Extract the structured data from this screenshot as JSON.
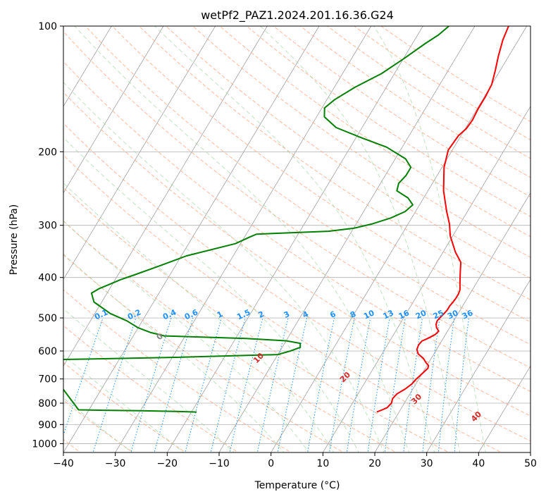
{
  "chart_data": {
    "type": "line",
    "subtype": "skew-t log-p diagram",
    "title": "wetPf2_PAZ1.2024.201.16.36.G24",
    "xlabel": "Temperature (°C)",
    "ylabel": "Pressure (hPa)",
    "xlim": [
      -40,
      50
    ],
    "ylim_hPa": [
      1050,
      100
    ],
    "y_scale": "log",
    "grid": true,
    "x_ticks": [
      "−40",
      "−30",
      "−20",
      "−10",
      "0",
      "10",
      "20",
      "30",
      "40",
      "50"
    ],
    "x_tick_values": [
      -40,
      -30,
      -20,
      -10,
      0,
      10,
      20,
      30,
      40,
      50
    ],
    "y_ticks": [
      "100",
      "200",
      "300",
      "400",
      "500",
      "600",
      "700",
      "800",
      "900",
      "1000"
    ],
    "y_tick_values": [
      100,
      200,
      300,
      400,
      500,
      600,
      700,
      800,
      900,
      1000
    ],
    "series": [
      {
        "role": "temperature",
        "color": "#ff0000",
        "points": [
          [
            15.7,
            840
          ],
          [
            16.5,
            830
          ],
          [
            17.2,
            820
          ],
          [
            17.5,
            800
          ],
          [
            17.2,
            780
          ],
          [
            17.5,
            760
          ],
          [
            18.5,
            740
          ],
          [
            19.2,
            720
          ],
          [
            19.5,
            700
          ],
          [
            20.0,
            680
          ],
          [
            20.5,
            660
          ],
          [
            20.3,
            650
          ],
          [
            19.5,
            640
          ],
          [
            18.5,
            625
          ],
          [
            17.0,
            610
          ],
          [
            16.2,
            595
          ],
          [
            16.0,
            580
          ],
          [
            16.2,
            568
          ],
          [
            17.0,
            560
          ],
          [
            18.0,
            548
          ],
          [
            18.3,
            538
          ],
          [
            17.5,
            528
          ],
          [
            17.0,
            518
          ],
          [
            16.8,
            508
          ],
          [
            17.0,
            498
          ],
          [
            17.3,
            488
          ],
          [
            17.5,
            478
          ],
          [
            17.5,
            468
          ],
          [
            17.7,
            458
          ],
          [
            17.8,
            448
          ],
          [
            17.8,
            438
          ],
          [
            17.6,
            428
          ],
          [
            16.6,
            408
          ],
          [
            15.6,
            388
          ],
          [
            14.6,
            368
          ],
          [
            12.4,
            348
          ],
          [
            9.5,
            318
          ],
          [
            8.0,
            298
          ],
          [
            6.0,
            278
          ],
          [
            3.0,
            248
          ],
          [
            0.4,
            218
          ],
          [
            -0.8,
            198
          ],
          [
            -0.5,
            183
          ],
          [
            0.2,
            176
          ],
          [
            0.4,
            168
          ],
          [
            0.2,
            158
          ],
          [
            0.2,
            148
          ],
          [
            0.0,
            138
          ],
          [
            -0.9,
            128
          ],
          [
            -2.0,
            118
          ],
          [
            -3.0,
            108
          ],
          [
            -3.5,
            100
          ]
        ]
      },
      {
        "role": "dewpoint",
        "color": "#008000",
        "points": [
          [
            -19.0,
            840
          ],
          [
            -23.0,
            837
          ],
          [
            -30.0,
            834
          ],
          [
            -37.0,
            832
          ],
          [
            -42.0,
            830
          ],
          [
            -55.0,
            630
          ],
          [
            -31.0,
            622
          ],
          [
            -10.0,
            612
          ],
          [
            -8.0,
            600
          ],
          [
            -6.5,
            588
          ],
          [
            -7.0,
            575
          ],
          [
            -10.0,
            567
          ],
          [
            -18.0,
            560
          ],
          [
            -34.0,
            552
          ],
          [
            -37.0,
            542
          ],
          [
            -40.0,
            528
          ],
          [
            -43.0,
            508
          ],
          [
            -47.0,
            488
          ],
          [
            -51.5,
            458
          ],
          [
            -53.0,
            436
          ],
          [
            -52.0,
            425
          ],
          [
            -50.5,
            415
          ],
          [
            -49.0,
            405
          ],
          [
            -47.0,
            395
          ],
          [
            -43.0,
            375
          ],
          [
            -39.0,
            355
          ],
          [
            -31.0,
            332
          ],
          [
            -29.0,
            320
          ],
          [
            -28.0,
            315
          ],
          [
            -14.5,
            310
          ],
          [
            -10.0,
            305
          ],
          [
            -7.0,
            298
          ],
          [
            -4.0,
            288
          ],
          [
            -2.0,
            278
          ],
          [
            -1.3,
            268
          ],
          [
            -3.0,
            258
          ],
          [
            -6.0,
            248
          ],
          [
            -6.5,
            238
          ],
          [
            -6.0,
            228
          ],
          [
            -6.0,
            218
          ],
          [
            -8.0,
            208
          ],
          [
            -13.0,
            195
          ],
          [
            -19.0,
            185
          ],
          [
            -25.0,
            175
          ],
          [
            -28.5,
            165
          ],
          [
            -29.5,
            157
          ],
          [
            -28.5,
            150
          ],
          [
            -26.0,
            140
          ],
          [
            -22.5,
            130
          ],
          [
            -20.0,
            120
          ],
          [
            -17.5,
            110
          ],
          [
            -16.0,
            105
          ],
          [
            -15.0,
            100
          ]
        ]
      }
    ],
    "dry_adiabats_C": [
      -100,
      -90,
      -80,
      -70,
      -60,
      -50,
      -40,
      -30,
      -20,
      -10,
      0,
      10,
      20,
      30,
      40
    ],
    "moist_adiabat_labels": [
      "0",
      "10",
      "20",
      "30",
      "40"
    ],
    "moist_adiabat_values": [
      0,
      10,
      20,
      30,
      40
    ],
    "mixing_ratio_labels": [
      "0.1",
      "0.2",
      "0.4",
      "0.6",
      "1",
      "1.5",
      "2",
      "3",
      "4",
      "6",
      "8",
      "10",
      "13",
      "16",
      "20",
      "25",
      "30",
      "36"
    ],
    "mixing_ratio_values_gkg": [
      0.1,
      0.2,
      0.4,
      0.6,
      1,
      1.5,
      2,
      3,
      4,
      6,
      8,
      10,
      13,
      16,
      20,
      25,
      30,
      36
    ],
    "colors": {
      "isotherm_grid": "#a0a0a0",
      "isobar_grid": "#b0b0b0",
      "dry_adiabat": "#ffa07a",
      "moist_adiabat": "#98cf98",
      "mixing_ratio": "#1e90ff",
      "dry_adiabat_label": "#1f77b4",
      "moist_adiabat_label": "#d62728",
      "mixing_ratio_label": "#1e90ff"
    }
  }
}
